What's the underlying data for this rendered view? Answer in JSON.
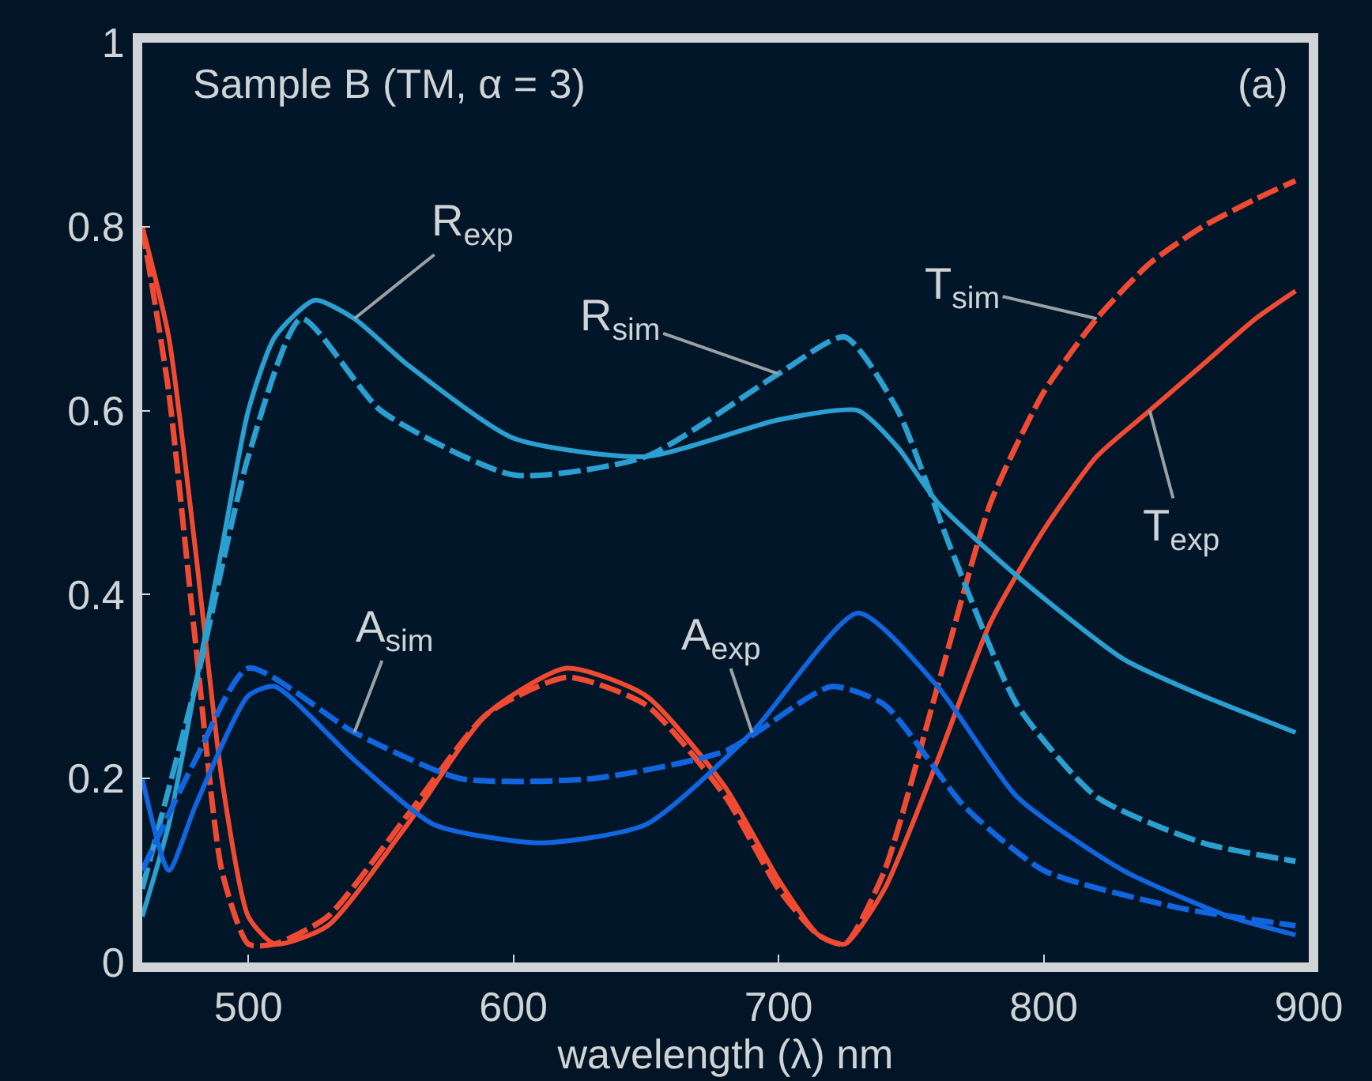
{
  "chart_data": {
    "type": "line",
    "title": "Sample B (TM, α = 3)",
    "xlabel": "wavelength (λ) nm",
    "xlim": [
      460,
      900
    ],
    "ylim": [
      0,
      1
    ],
    "xticks": [
      500,
      600,
      700,
      800,
      900
    ],
    "yticks": [
      0,
      0.2,
      0.4,
      0.6,
      0.8,
      1
    ],
    "grid": false,
    "marker": "none",
    "annotations": [
      "(a)",
      {
        "text": "R$_{exp}$",
        "x": 540,
        "y": 0.7
      },
      {
        "text": "R$_{sim}$",
        "x": 700,
        "y": 0.64
      },
      {
        "text": "T$_{sim}$",
        "x": 820,
        "y": 0.7
      },
      {
        "text": "T$_{exp}$",
        "x": 840,
        "y": 0.6
      },
      {
        "text": "A$_{sim}$",
        "x": 540,
        "y": 0.25
      },
      {
        "text": "A$_{exp}$",
        "x": 690,
        "y": 0.25
      }
    ],
    "series": [
      {
        "color": "#f04a32",
        "line_style": "solid",
        "x": [
          460,
          470,
          480,
          490,
          500,
          510,
          530,
          560,
          590,
          620,
          650,
          680,
          700,
          715,
          725,
          740,
          760,
          780,
          800,
          820,
          840,
          860,
          880,
          895
        ],
        "values": [
          0.8,
          0.68,
          0.45,
          0.2,
          0.05,
          0.02,
          0.04,
          0.15,
          0.27,
          0.32,
          0.29,
          0.19,
          0.09,
          0.03,
          0.02,
          0.08,
          0.22,
          0.37,
          0.47,
          0.55,
          0.6,
          0.65,
          0.7,
          0.73
        ]
      },
      {
        "color": "#f04a32",
        "line_style": "dashed",
        "x": [
          460,
          470,
          480,
          490,
          500,
          510,
          530,
          560,
          590,
          620,
          650,
          680,
          700,
          715,
          725,
          740,
          760,
          780,
          800,
          820,
          840,
          860,
          880,
          895
        ],
        "values": [
          0.8,
          0.62,
          0.35,
          0.1,
          0.02,
          0.02,
          0.05,
          0.16,
          0.27,
          0.31,
          0.28,
          0.18,
          0.08,
          0.03,
          0.02,
          0.1,
          0.3,
          0.5,
          0.62,
          0.7,
          0.76,
          0.8,
          0.83,
          0.85
        ]
      },
      {
        "color": "#2a9fd0",
        "line_style": "solid",
        "x": [
          460,
          470,
          480,
          490,
          500,
          510,
          525,
          540,
          560,
          600,
          650,
          700,
          730,
          745,
          760,
          790,
          830,
          860,
          895
        ],
        "values": [
          0.05,
          0.15,
          0.3,
          0.45,
          0.6,
          0.68,
          0.72,
          0.7,
          0.65,
          0.57,
          0.55,
          0.59,
          0.6,
          0.56,
          0.5,
          0.42,
          0.33,
          0.29,
          0.25
        ]
      },
      {
        "color": "#2a9fd0",
        "line_style": "dashed",
        "x": [
          460,
          480,
          500,
          520,
          550,
          600,
          650,
          700,
          725,
          745,
          765,
          790,
          820,
          860,
          895
        ],
        "values": [
          0.08,
          0.3,
          0.55,
          0.7,
          0.6,
          0.53,
          0.55,
          0.64,
          0.68,
          0.6,
          0.45,
          0.28,
          0.18,
          0.13,
          0.11
        ]
      },
      {
        "color": "#1166e0",
        "line_style": "solid",
        "x": [
          460,
          470,
          480,
          500,
          510,
          540,
          570,
          610,
          650,
          690,
          730,
          760,
          790,
          830,
          870,
          895
        ],
        "values": [
          0.2,
          0.1,
          0.17,
          0.29,
          0.3,
          0.22,
          0.15,
          0.13,
          0.15,
          0.25,
          0.38,
          0.3,
          0.18,
          0.1,
          0.05,
          0.03
        ]
      },
      {
        "color": "#1166e0",
        "line_style": "dashed",
        "x": [
          460,
          480,
          500,
          540,
          580,
          630,
          680,
          720,
          740,
          770,
          800,
          850,
          895
        ],
        "values": [
          0.1,
          0.22,
          0.32,
          0.25,
          0.2,
          0.2,
          0.23,
          0.3,
          0.28,
          0.17,
          0.1,
          0.06,
          0.04
        ]
      }
    ]
  }
}
